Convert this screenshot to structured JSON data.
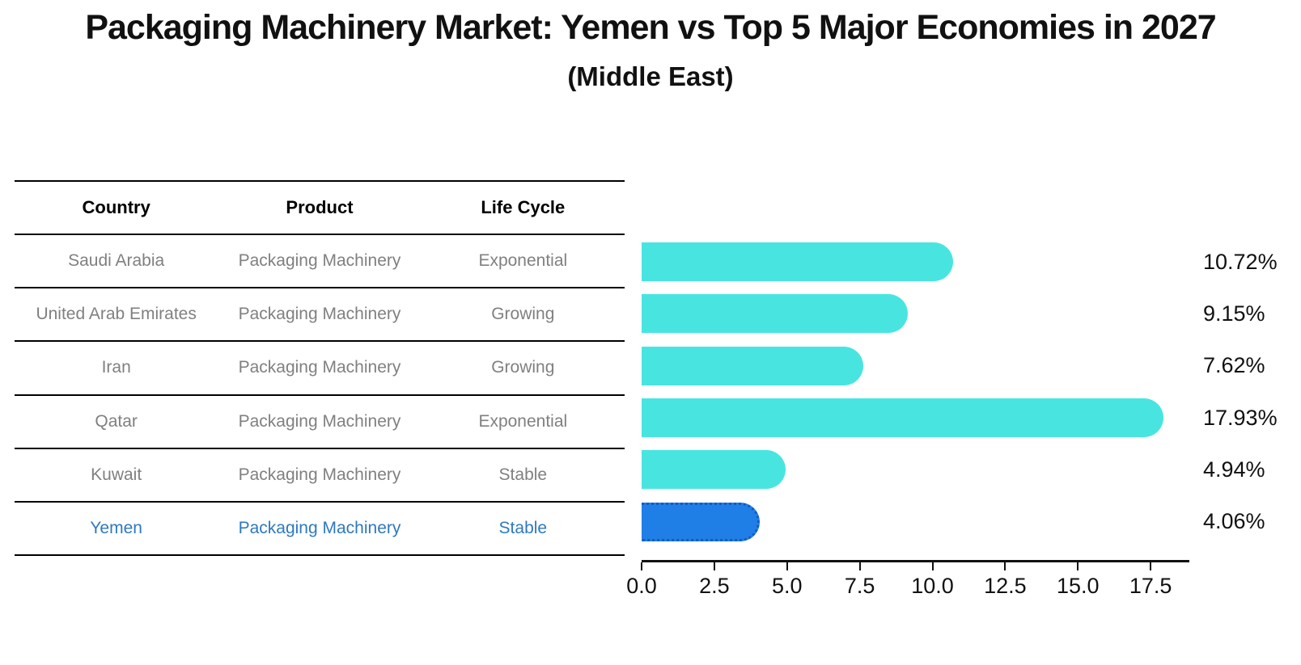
{
  "title": "Packaging Machinery Market: Yemen vs Top 5 Major Economies in 2027",
  "subtitle": "(Middle East)",
  "colors": {
    "bar_color": "#48E5E0",
    "highlight_bar": "#1F7FE6",
    "highlight_border": "#1559C8",
    "highlight_text": "#2E79C0",
    "row_text": "#808080",
    "header_text": "#000000"
  },
  "table": {
    "headers": [
      "Country",
      "Product",
      "Life Cycle"
    ],
    "rows": [
      {
        "country": "Saudi Arabia",
        "product": "Packaging Machinery",
        "life_cycle": "Exponential",
        "highlight": false
      },
      {
        "country": "United Arab Emirates",
        "product": "Packaging Machinery",
        "life_cycle": "Growing",
        "highlight": false
      },
      {
        "country": "Iran",
        "product": "Packaging Machinery",
        "life_cycle": "Growing",
        "highlight": false
      },
      {
        "country": "Qatar",
        "product": "Packaging Machinery",
        "life_cycle": "Exponential",
        "highlight": false
      },
      {
        "country": "Kuwait",
        "product": "Packaging Machinery",
        "life_cycle": "Stable",
        "highlight": false
      },
      {
        "country": "Yemen",
        "product": "Packaging Machinery",
        "life_cycle": "Stable",
        "highlight": true
      }
    ]
  },
  "chart_data": {
    "type": "bar",
    "orientation": "horizontal",
    "title": "Packaging Machinery Market: Yemen vs Top 5 Major Economies in 2027",
    "subtitle": "(Middle East)",
    "categories": [
      "Saudi Arabia",
      "United Arab Emirates",
      "Iran",
      "Qatar",
      "Kuwait",
      "Yemen"
    ],
    "values": [
      10.72,
      9.15,
      7.62,
      17.93,
      4.94,
      4.06
    ],
    "labels": [
      "10.72%",
      "9.15%",
      "7.62%",
      "17.93%",
      "4.94%",
      "4.06%"
    ],
    "unit": "%",
    "highlight_index": 5,
    "xlim": [
      0,
      18.83
    ],
    "x_tick_values": [
      0,
      2.5,
      5,
      7.5,
      10,
      12.5,
      15,
      17.5
    ],
    "x_ticks": [
      "0.0",
      "2.5",
      "5.0",
      "7.5",
      "10.0",
      "12.5",
      "15.0",
      "17.5"
    ],
    "grid": false,
    "legend": false
  }
}
